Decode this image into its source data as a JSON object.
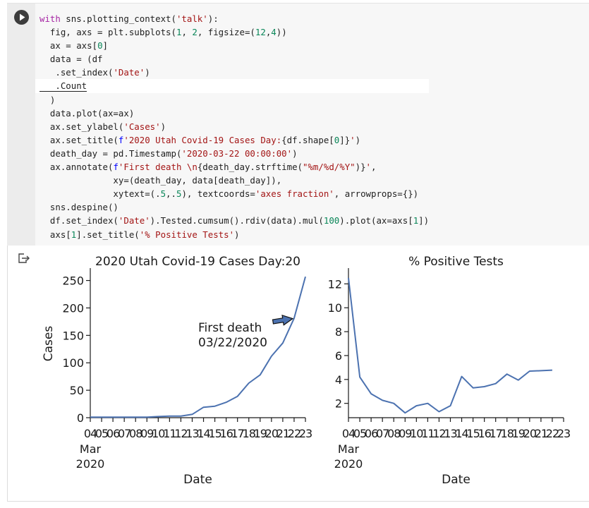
{
  "code_cell": {
    "lines": [
      [
        {
          "t": "with",
          "c": "kw"
        },
        {
          "t": " sns.plotting_context("
        },
        {
          "t": "'talk'",
          "c": "str"
        },
        {
          "t": "):"
        }
      ],
      [
        {
          "t": "  fig, axs = plt.subplots("
        },
        {
          "t": "1",
          "c": "num"
        },
        {
          "t": ", "
        },
        {
          "t": "2",
          "c": "num"
        },
        {
          "t": ", figsize=("
        },
        {
          "t": "12",
          "c": "num"
        },
        {
          "t": ","
        },
        {
          "t": "4",
          "c": "num"
        },
        {
          "t": "))"
        }
      ],
      [
        {
          "t": "  ax = axs["
        },
        {
          "t": "0",
          "c": "num"
        },
        {
          "t": "]"
        }
      ],
      [
        {
          "t": "  data = (df"
        }
      ],
      [
        {
          "t": "   .set_index("
        },
        {
          "t": "'Date'",
          "c": "str"
        },
        {
          "t": ")"
        }
      ],
      [
        {
          "t": "   .Count",
          "c": "cursor"
        }
      ],
      [
        {
          "t": "  )"
        }
      ],
      [
        {
          "t": "  data.plot(ax=ax)"
        }
      ],
      [
        {
          "t": "  ax.set_ylabel("
        },
        {
          "t": "'Cases'",
          "c": "str"
        },
        {
          "t": ")"
        }
      ],
      [
        {
          "t": "  ax.set_title("
        },
        {
          "t": "f",
          "c": "fpref"
        },
        {
          "t": "'2020 Utah Covid-19 Cases Day:",
          "c": "str"
        },
        {
          "t": "{df.shape["
        },
        {
          "t": "0",
          "c": "num"
        },
        {
          "t": "]}"
        },
        {
          "t": "'",
          "c": "str"
        },
        {
          "t": ")"
        }
      ],
      [
        {
          "t": "  death_day = pd.Timestamp("
        },
        {
          "t": "'2020-03-22 00:00:00'",
          "c": "str"
        },
        {
          "t": ")"
        }
      ],
      [
        {
          "t": "  ax.annotate("
        },
        {
          "t": "f",
          "c": "fpref"
        },
        {
          "t": "'First death \\n",
          "c": "str"
        },
        {
          "t": "{death_day.strftime("
        },
        {
          "t": "\"%m/%d/%Y\"",
          "c": "str"
        },
        {
          "t": ")}"
        },
        {
          "t": "'",
          "c": "str"
        },
        {
          "t": ","
        }
      ],
      [
        {
          "t": "              xy=(death_day, data[death_day]),"
        }
      ],
      [
        {
          "t": "              xytext=(."
        },
        {
          "t": "5",
          "c": "num"
        },
        {
          "t": ",."
        },
        {
          "t": "5",
          "c": "num"
        },
        {
          "t": "), textcoords="
        },
        {
          "t": "'axes fraction'",
          "c": "str"
        },
        {
          "t": ", arrowprops={})"
        }
      ],
      [
        {
          "t": "  sns.despine()"
        }
      ],
      [
        {
          "t": "  df.set_index("
        },
        {
          "t": "'Date'",
          "c": "str"
        },
        {
          "t": ").Tested.cumsum().rdiv(data).mul("
        },
        {
          "t": "100",
          "c": "num"
        },
        {
          "t": ").plot(ax=axs["
        },
        {
          "t": "1",
          "c": "num"
        },
        {
          "t": "])"
        }
      ],
      [
        {
          "t": "  axs["
        },
        {
          "t": "1",
          "c": "num"
        },
        {
          "t": "].set_title("
        },
        {
          "t": "'% Positive Tests'",
          "c": "str"
        },
        {
          "t": ")"
        }
      ]
    ],
    "active_line": 5
  },
  "icons": {
    "run": "play-circle-icon",
    "output": "output-redirect-icon"
  },
  "colors": {
    "line": "#4c72b0",
    "arrow_fill": "#4c72b0"
  },
  "chart_data": [
    {
      "type": "line",
      "title": "2020 Utah Covid-19 Cases Day:20",
      "xlabel": "Date",
      "ylabel": "Cases",
      "x": [
        "2020-03-04",
        "2020-03-05",
        "2020-03-06",
        "2020-03-07",
        "2020-03-08",
        "2020-03-09",
        "2020-03-10",
        "2020-03-11",
        "2020-03-12",
        "2020-03-13",
        "2020-03-14",
        "2020-03-15",
        "2020-03-16",
        "2020-03-17",
        "2020-03-18",
        "2020-03-19",
        "2020-03-20",
        "2020-03-21",
        "2020-03-22",
        "2020-03-23"
      ],
      "series": [
        {
          "values": [
            1,
            1,
            1,
            1,
            1,
            1,
            2,
            3,
            3,
            6,
            19,
            21,
            28,
            39,
            63,
            78,
            112,
            136,
            181,
            257
          ]
        }
      ],
      "ylim": [
        0,
        270
      ],
      "yticks": [
        "0",
        "50",
        "100",
        "150",
        "200",
        "250"
      ],
      "xtick_labels": [
        "04",
        "05",
        "06",
        "07",
        "08",
        "09",
        "10",
        "11",
        "12",
        "13",
        "14",
        "15",
        "16",
        "17",
        "18",
        "19",
        "20",
        "21",
        "22",
        "23"
      ],
      "xtick_sublabels": [
        "Mar",
        "2020"
      ],
      "annotation": {
        "text": [
          "First death",
          "03/22/2020"
        ],
        "x": "2020-03-22",
        "y": 181
      },
      "grid": false
    },
    {
      "type": "line",
      "title": "% Positive Tests",
      "xlabel": "Date",
      "ylabel": "",
      "x": [
        "2020-03-04",
        "2020-03-05",
        "2020-03-06",
        "2020-03-07",
        "2020-03-08",
        "2020-03-09",
        "2020-03-10",
        "2020-03-11",
        "2020-03-12",
        "2020-03-13",
        "2020-03-14",
        "2020-03-15",
        "2020-03-16",
        "2020-03-17",
        "2020-03-18",
        "2020-03-19",
        "2020-03-20",
        "2020-03-21",
        "2020-03-22"
      ],
      "series": [
        {
          "values": [
            12.5,
            4.2,
            2.8,
            2.25,
            2.0,
            1.2,
            1.8,
            2.0,
            1.3,
            1.8,
            4.25,
            3.3,
            3.4,
            3.65,
            4.45,
            3.95,
            4.7,
            4.73,
            4.78
          ]
        }
      ],
      "ylim": [
        0.8,
        13.2
      ],
      "yticks": [
        "2",
        "4",
        "6",
        "8",
        "10",
        "12"
      ],
      "xtick_labels": [
        "04",
        "05",
        "06",
        "07",
        "08",
        "09",
        "10",
        "11",
        "12",
        "13",
        "14",
        "15",
        "16",
        "17",
        "18",
        "19",
        "20",
        "21",
        "22",
        "23"
      ],
      "xtick_sublabels": [
        "Mar",
        "2020"
      ],
      "grid": false
    }
  ]
}
